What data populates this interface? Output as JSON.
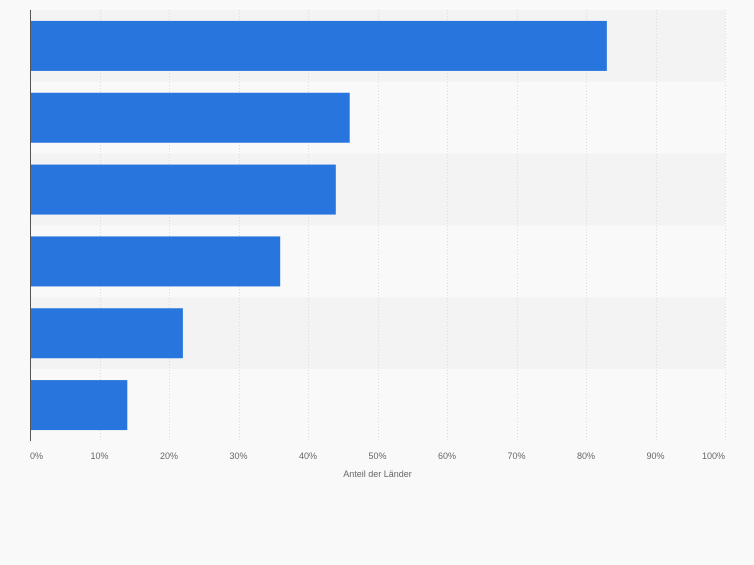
{
  "chart_data": {
    "type": "bar",
    "orientation": "horizontal",
    "categories": [
      "",
      "",
      "",
      "",
      "",
      ""
    ],
    "values": [
      83,
      46,
      44,
      36,
      22,
      14
    ],
    "unit": "%",
    "xlabel": "Anteil der Länder",
    "ylabel": "",
    "xlim": [
      0,
      100
    ],
    "xticks": [
      "0%",
      "10%",
      "20%",
      "30%",
      "40%",
      "50%",
      "60%",
      "70%",
      "80%",
      "90%",
      "100%"
    ],
    "grid": true,
    "legend": "none",
    "colors": {
      "bar": "#2876dd",
      "band_dark": "#f3f3f3",
      "band_light": "#f9f9f9",
      "grid": "#dcdcdc",
      "axis": "#555555",
      "text": "#666666"
    }
  }
}
